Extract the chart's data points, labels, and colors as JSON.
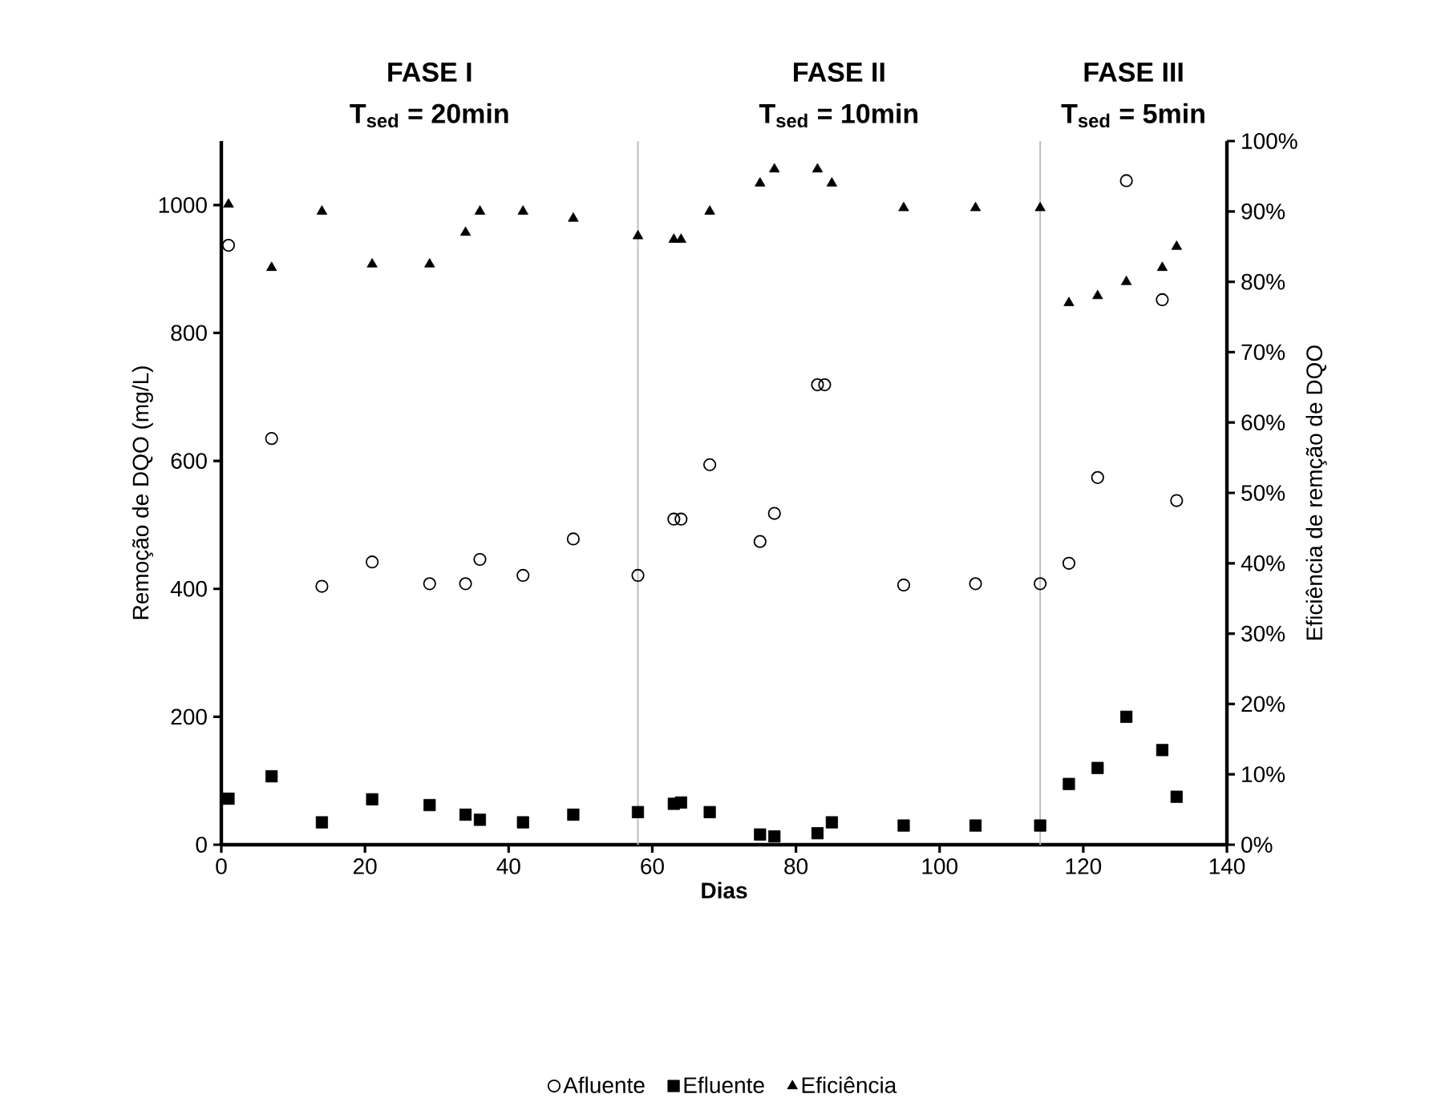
{
  "chart_data": {
    "type": "scatter",
    "xlabel": "Dias",
    "ylabel": "Remoção de DQO (mg/L)",
    "y2label": "Eficiência de remção de DQO",
    "annotations": [
      "FASE I",
      "T$_{sed}$ = 20min",
      "FASE II",
      "T$_{sed}$ = 10min",
      "FASE III",
      "T$_{sed}$ = 5min"
    ],
    "series": [
      {
        "name": "Afluente",
        "color": "#000000",
        "marker": "circle",
        "x": [
          1,
          7,
          14,
          21,
          29,
          34,
          36,
          42,
          49,
          58,
          63,
          64,
          68,
          75,
          77,
          83,
          84,
          95,
          105,
          114,
          118,
          122,
          126,
          131,
          133
        ],
        "values": [
          937,
          635,
          404,
          442,
          408,
          408,
          446,
          421,
          478,
          421,
          509,
          509,
          594,
          474,
          518,
          719,
          719,
          406,
          408,
          408,
          440,
          574,
          1038,
          852,
          538
        ]
      },
      {
        "name": "Efluente",
        "color": "#000000",
        "marker": "square",
        "x": [
          1,
          7,
          14,
          21,
          29,
          34,
          36,
          42,
          49,
          58,
          63,
          64,
          68,
          75,
          77,
          83,
          85,
          95,
          105,
          114,
          118,
          122,
          126,
          131,
          133
        ],
        "values": [
          72,
          107,
          35,
          71,
          62,
          47,
          39,
          35,
          47,
          51,
          64,
          66,
          51,
          16,
          13,
          18,
          35,
          30,
          30,
          30,
          95,
          120,
          200,
          148,
          75
        ]
      },
      {
        "name": "Eficiência",
        "color": "#000000",
        "marker": "triangle",
        "axis": "y2",
        "x": [
          1,
          7,
          14,
          21,
          29,
          34,
          36,
          42,
          49,
          58,
          63,
          64,
          68,
          75,
          77,
          83,
          85,
          95,
          105,
          114,
          118,
          122,
          126,
          131,
          133
        ],
        "values": [
          91,
          82,
          90,
          82.5,
          82.5,
          87,
          90,
          90,
          89,
          86.5,
          86,
          86,
          90,
          94,
          96,
          96,
          94,
          90.5,
          90.5,
          90.5,
          77,
          78,
          80,
          82,
          85
        ]
      }
    ],
    "xlim": [
      0,
      140
    ],
    "xticks": [
      0,
      20,
      40,
      60,
      80,
      100,
      120,
      140
    ],
    "ylim": [
      0,
      1100
    ],
    "yticks": [
      0,
      200,
      400,
      600,
      800,
      1000
    ],
    "y2lim": [
      0,
      100
    ],
    "y2ticks": [
      {
        "value": 0,
        "label": "0%"
      },
      {
        "value": 10,
        "label": "10%"
      },
      {
        "value": 20,
        "label": "20%"
      },
      {
        "value": 30,
        "label": "30%"
      },
      {
        "value": 40,
        "label": "40%"
      },
      {
        "value": 50,
        "label": "50%"
      },
      {
        "value": 60,
        "label": "60%"
      },
      {
        "value": 70,
        "label": "70%"
      },
      {
        "value": 80,
        "label": "80%"
      },
      {
        "value": 90,
        "label": "90%"
      },
      {
        "value": 100,
        "label": "100%"
      }
    ],
    "ref_lines": [
      {
        "axis": "x",
        "value": 58,
        "color": "#bfbfbf"
      },
      {
        "axis": "x",
        "value": 114,
        "color": "#bfbfbf"
      }
    ],
    "legend": "bottom"
  }
}
